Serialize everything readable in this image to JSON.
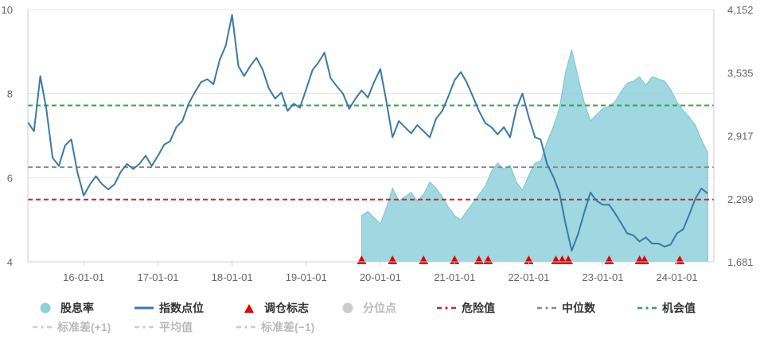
{
  "chart_data": {
    "type": "line",
    "y_left": {
      "ticks": [
        "4",
        "6",
        "8",
        "10"
      ],
      "range": [
        4,
        10
      ]
    },
    "y_right": {
      "ticks": [
        "1,681",
        "2,299",
        "2,917",
        "3,535",
        "4,152"
      ],
      "range": [
        1681,
        4152
      ]
    },
    "x_ticks": [
      "16-01-01",
      "17-01-01",
      "18-01-01",
      "19-01-01",
      "20-01-01",
      "21-01-01",
      "22-01-01",
      "23-01-01",
      "24-01-01"
    ],
    "x_range": [
      "2015-04-01",
      "2024-07-01"
    ],
    "series": [
      {
        "name": "指数点位",
        "axis": "right",
        "color": "#3a78a8",
        "points": [
          [
            "2015-04-01",
            3050
          ],
          [
            "2015-05-01",
            2960
          ],
          [
            "2015-06-01",
            3500
          ],
          [
            "2015-07-01",
            3180
          ],
          [
            "2015-08-01",
            2700
          ],
          [
            "2015-09-01",
            2620
          ],
          [
            "2015-10-01",
            2820
          ],
          [
            "2015-11-01",
            2880
          ],
          [
            "2015-12-01",
            2560
          ],
          [
            "2016-01-01",
            2330
          ],
          [
            "2016-02-01",
            2440
          ],
          [
            "2016-03-01",
            2520
          ],
          [
            "2016-04-01",
            2440
          ],
          [
            "2016-05-01",
            2390
          ],
          [
            "2016-06-01",
            2440
          ],
          [
            "2016-07-01",
            2560
          ],
          [
            "2016-08-01",
            2640
          ],
          [
            "2016-09-01",
            2590
          ],
          [
            "2016-10-01",
            2640
          ],
          [
            "2016-11-01",
            2720
          ],
          [
            "2016-12-01",
            2620
          ],
          [
            "2017-01-01",
            2720
          ],
          [
            "2017-02-01",
            2830
          ],
          [
            "2017-03-01",
            2860
          ],
          [
            "2017-04-01",
            3000
          ],
          [
            "2017-05-01",
            3060
          ],
          [
            "2017-06-01",
            3230
          ],
          [
            "2017-07-01",
            3340
          ],
          [
            "2017-08-01",
            3440
          ],
          [
            "2017-09-01",
            3470
          ],
          [
            "2017-10-01",
            3420
          ],
          [
            "2017-11-01",
            3660
          ],
          [
            "2017-12-01",
            3800
          ],
          [
            "2018-01-01",
            4100
          ],
          [
            "2018-02-01",
            3600
          ],
          [
            "2018-03-01",
            3500
          ],
          [
            "2018-04-01",
            3600
          ],
          [
            "2018-05-01",
            3680
          ],
          [
            "2018-06-01",
            3560
          ],
          [
            "2018-07-01",
            3380
          ],
          [
            "2018-08-01",
            3280
          ],
          [
            "2018-09-01",
            3340
          ],
          [
            "2018-10-01",
            3160
          ],
          [
            "2018-11-01",
            3230
          ],
          [
            "2018-12-01",
            3190
          ],
          [
            "2019-01-01",
            3370
          ],
          [
            "2019-02-01",
            3560
          ],
          [
            "2019-03-01",
            3630
          ],
          [
            "2019-04-01",
            3730
          ],
          [
            "2019-05-01",
            3480
          ],
          [
            "2019-06-01",
            3400
          ],
          [
            "2019-07-01",
            3330
          ],
          [
            "2019-08-01",
            3180
          ],
          [
            "2019-09-01",
            3280
          ],
          [
            "2019-10-01",
            3360
          ],
          [
            "2019-11-01",
            3290
          ],
          [
            "2019-12-01",
            3440
          ],
          [
            "2020-01-01",
            3570
          ],
          [
            "2020-02-01",
            3240
          ],
          [
            "2020-03-01",
            2900
          ],
          [
            "2020-04-01",
            3060
          ],
          [
            "2020-05-01",
            3000
          ],
          [
            "2020-06-01",
            2940
          ],
          [
            "2020-07-01",
            3020
          ],
          [
            "2020-08-01",
            2960
          ],
          [
            "2020-09-01",
            2900
          ],
          [
            "2020-10-01",
            3080
          ],
          [
            "2020-11-01",
            3160
          ],
          [
            "2020-12-01",
            3300
          ],
          [
            "2021-01-01",
            3460
          ],
          [
            "2021-02-01",
            3540
          ],
          [
            "2021-03-01",
            3440
          ],
          [
            "2021-04-01",
            3300
          ],
          [
            "2021-05-01",
            3160
          ],
          [
            "2021-06-01",
            3040
          ],
          [
            "2021-07-01",
            3000
          ],
          [
            "2021-08-01",
            2930
          ],
          [
            "2021-09-01",
            3000
          ],
          [
            "2021-10-01",
            2900
          ],
          [
            "2021-11-01",
            3180
          ],
          [
            "2021-12-01",
            3330
          ],
          [
            "2022-01-01",
            3100
          ],
          [
            "2022-02-01",
            2900
          ],
          [
            "2022-03-01",
            2880
          ],
          [
            "2022-04-01",
            2640
          ],
          [
            "2022-05-01",
            2520
          ],
          [
            "2022-06-01",
            2360
          ],
          [
            "2022-07-01",
            2060
          ],
          [
            "2022-08-01",
            1790
          ],
          [
            "2022-09-01",
            1950
          ],
          [
            "2022-10-01",
            2160
          ],
          [
            "2022-11-01",
            2360
          ],
          [
            "2022-12-01",
            2280
          ],
          [
            "2023-01-01",
            2240
          ],
          [
            "2023-02-01",
            2240
          ],
          [
            "2023-03-01",
            2160
          ],
          [
            "2023-04-01",
            2060
          ],
          [
            "2023-05-01",
            1960
          ],
          [
            "2023-06-01",
            1940
          ],
          [
            "2023-07-01",
            1880
          ],
          [
            "2023-08-01",
            1920
          ],
          [
            "2023-09-01",
            1860
          ],
          [
            "2023-10-01",
            1860
          ],
          [
            "2023-11-01",
            1830
          ],
          [
            "2023-12-01",
            1850
          ],
          [
            "2024-01-01",
            1960
          ],
          [
            "2024-02-01",
            2000
          ],
          [
            "2024-03-01",
            2140
          ],
          [
            "2024-04-01",
            2300
          ],
          [
            "2024-05-01",
            2400
          ],
          [
            "2024-06-01",
            2350
          ]
        ]
      },
      {
        "name": "股息率",
        "axis": "left",
        "color": "#8fd0db",
        "points": [
          [
            "2019-10-01",
            5.1
          ],
          [
            "2019-11-01",
            5.2
          ],
          [
            "2019-12-01",
            5.05
          ],
          [
            "2020-01-01",
            4.9
          ],
          [
            "2020-02-01",
            5.3
          ],
          [
            "2020-03-01",
            5.75
          ],
          [
            "2020-04-01",
            5.45
          ],
          [
            "2020-05-01",
            5.55
          ],
          [
            "2020-06-01",
            5.65
          ],
          [
            "2020-07-01",
            5.45
          ],
          [
            "2020-08-01",
            5.6
          ],
          [
            "2020-09-01",
            5.9
          ],
          [
            "2020-10-01",
            5.75
          ],
          [
            "2020-11-01",
            5.55
          ],
          [
            "2020-12-01",
            5.3
          ],
          [
            "2021-01-01",
            5.1
          ],
          [
            "2021-02-01",
            5.0
          ],
          [
            "2021-03-01",
            5.2
          ],
          [
            "2021-04-01",
            5.4
          ],
          [
            "2021-05-01",
            5.6
          ],
          [
            "2021-06-01",
            5.8
          ],
          [
            "2021-07-01",
            6.15
          ],
          [
            "2021-08-01",
            6.35
          ],
          [
            "2021-09-01",
            6.2
          ],
          [
            "2021-10-01",
            6.3
          ],
          [
            "2021-11-01",
            5.9
          ],
          [
            "2021-12-01",
            5.7
          ],
          [
            "2022-01-01",
            6.05
          ],
          [
            "2022-02-01",
            6.35
          ],
          [
            "2022-03-01",
            6.4
          ],
          [
            "2022-04-01",
            6.85
          ],
          [
            "2022-05-01",
            7.2
          ],
          [
            "2022-06-01",
            7.65
          ],
          [
            "2022-07-01",
            8.5
          ],
          [
            "2022-08-01",
            9.05
          ],
          [
            "2022-09-01",
            8.4
          ],
          [
            "2022-10-01",
            7.8
          ],
          [
            "2022-11-01",
            7.35
          ],
          [
            "2022-12-01",
            7.5
          ],
          [
            "2023-01-01",
            7.65
          ],
          [
            "2023-02-01",
            7.7
          ],
          [
            "2023-03-01",
            7.8
          ],
          [
            "2023-04-01",
            8.05
          ],
          [
            "2023-05-01",
            8.25
          ],
          [
            "2023-06-01",
            8.3
          ],
          [
            "2023-07-01",
            8.4
          ],
          [
            "2023-08-01",
            8.2
          ],
          [
            "2023-09-01",
            8.4
          ],
          [
            "2023-10-01",
            8.35
          ],
          [
            "2023-11-01",
            8.3
          ],
          [
            "2023-12-01",
            8.1
          ],
          [
            "2024-01-01",
            7.8
          ],
          [
            "2024-02-01",
            7.6
          ],
          [
            "2024-03-01",
            7.45
          ],
          [
            "2024-04-01",
            7.25
          ],
          [
            "2024-05-01",
            6.9
          ],
          [
            "2024-06-01",
            6.6
          ]
        ]
      }
    ],
    "reference_lines": [
      {
        "name": "危险值",
        "value": 5.48,
        "color": "#c62828"
      },
      {
        "name": "中位数",
        "value": 6.25,
        "color": "#8a8a8a"
      },
      {
        "name": "机会值",
        "value": 7.72,
        "color": "#2ea84a"
      }
    ],
    "markers": {
      "name": "调仓标志",
      "color": "#e00000",
      "dates": [
        "2019-10-01",
        "2020-03-01",
        "2020-08-01",
        "2021-01-01",
        "2021-05-01",
        "2021-06-15",
        "2022-01-01",
        "2022-05-15",
        "2022-06-15",
        "2022-07-15",
        "2023-02-01",
        "2023-07-01",
        "2023-07-25",
        "2024-01-15"
      ]
    },
    "grid": true
  },
  "legend": {
    "row1": [
      {
        "label": "股息率",
        "icon": "circle",
        "color": "#8fd0db",
        "active": true
      },
      {
        "label": "指数点位",
        "icon": "line",
        "color": "#3a78a8",
        "active": true
      },
      {
        "label": "调仓标志",
        "icon": "triangle",
        "color": "#e00000",
        "active": true
      },
      {
        "label": "分位点",
        "icon": "circle",
        "color": "#cccccc",
        "active": false
      },
      {
        "label": "危险值",
        "icon": "dash",
        "color": "#c62828",
        "active": true
      },
      {
        "label": "中位数",
        "icon": "dash",
        "color": "#8a8a8a",
        "active": true
      },
      {
        "label": "机会值",
        "icon": "dash",
        "color": "#2ea84a",
        "active": true
      }
    ],
    "row2": [
      {
        "label": "标准差(+1)",
        "icon": "dash",
        "color": "#cccccc",
        "active": false
      },
      {
        "label": "平均值",
        "icon": "dash",
        "color": "#cccccc",
        "active": false
      },
      {
        "label": "标准差(−1)",
        "icon": "dash",
        "color": "#cccccc",
        "active": false
      }
    ]
  }
}
